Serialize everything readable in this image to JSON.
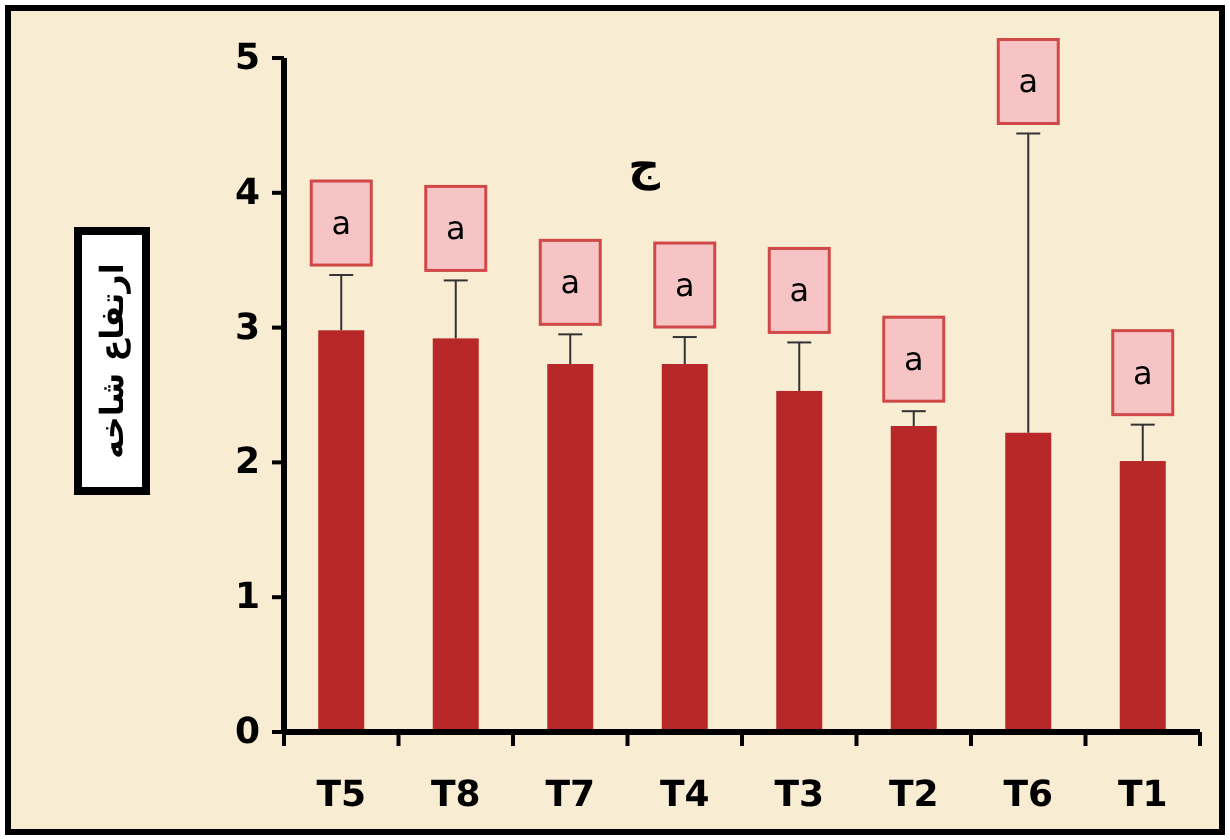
{
  "chart_data": {
    "type": "bar",
    "title": "ج",
    "ylabel": "ارتفاع شاخه",
    "categories": [
      "T5",
      "T8",
      "T7",
      "T4",
      "T3",
      "T2",
      "T6",
      "T1"
    ],
    "values": [
      2.98,
      2.92,
      2.73,
      2.73,
      2.53,
      2.27,
      2.22,
      2.01
    ],
    "errors": [
      [
        2.98,
        3.39
      ],
      [
        2.92,
        3.35
      ],
      [
        2.73,
        2.95
      ],
      [
        2.73,
        2.93
      ],
      [
        2.53,
        2.89
      ],
      [
        2.27,
        2.38
      ],
      [
        2.22,
        4.44
      ],
      [
        2.01,
        2.28
      ]
    ],
    "color": "#b82828",
    "ylim": [
      0,
      5
    ],
    "yticks": [
      0,
      1,
      2,
      3,
      4,
      5
    ],
    "grid": false,
    "annotations": [
      {
        "text": "a",
        "x": "T5",
        "y": 3.39
      },
      {
        "text": "a",
        "x": "T8",
        "y": 3.35
      },
      {
        "text": "a",
        "x": "T7",
        "y": 2.95
      },
      {
        "text": "a",
        "x": "T4",
        "y": 2.93
      },
      {
        "text": "a",
        "x": "T3",
        "y": 2.89
      },
      {
        "text": "a",
        "x": "T2",
        "y": 2.38
      },
      {
        "text": "a",
        "x": "T6",
        "y": 4.44
      },
      {
        "text": "a",
        "x": "T1",
        "y": 2.28
      }
    ]
  }
}
